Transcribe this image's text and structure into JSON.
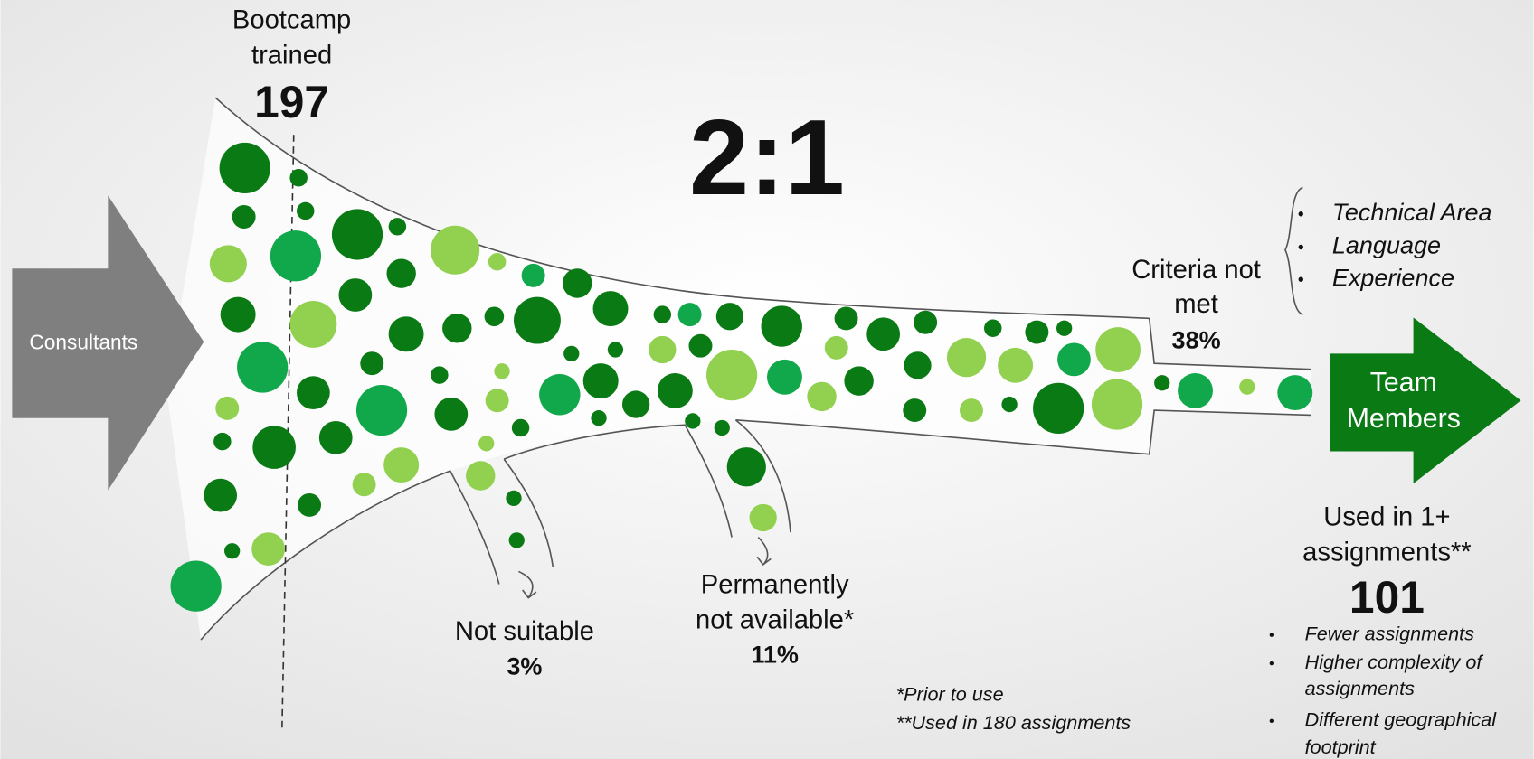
{
  "start_arrow": "Consultants",
  "end_arrow": [
    "Team",
    "Members"
  ],
  "ratio": "2:1",
  "bootcamp": {
    "label": [
      "Bootcamp",
      "trained"
    ],
    "value": "197"
  },
  "criteria": {
    "label": [
      "Criteria not",
      "met"
    ],
    "value": "38%",
    "items": [
      "Technical Area",
      "Language",
      "Experience"
    ]
  },
  "not_suitable": {
    "label": [
      "Not suitable"
    ],
    "value": "3%"
  },
  "not_available": {
    "label": [
      "Permanently",
      "not available*"
    ],
    "value": "11%"
  },
  "used": {
    "label": [
      "Used in 1+",
      "assignments**"
    ],
    "value": "101",
    "notes": [
      [
        "Fewer assignments"
      ],
      [
        "Higher complexity of",
        "assignments"
      ],
      [
        "Different geographical",
        "footprint"
      ]
    ]
  },
  "footnotes": [
    "*Prior to use",
    "**Used in 180 assignments"
  ]
}
